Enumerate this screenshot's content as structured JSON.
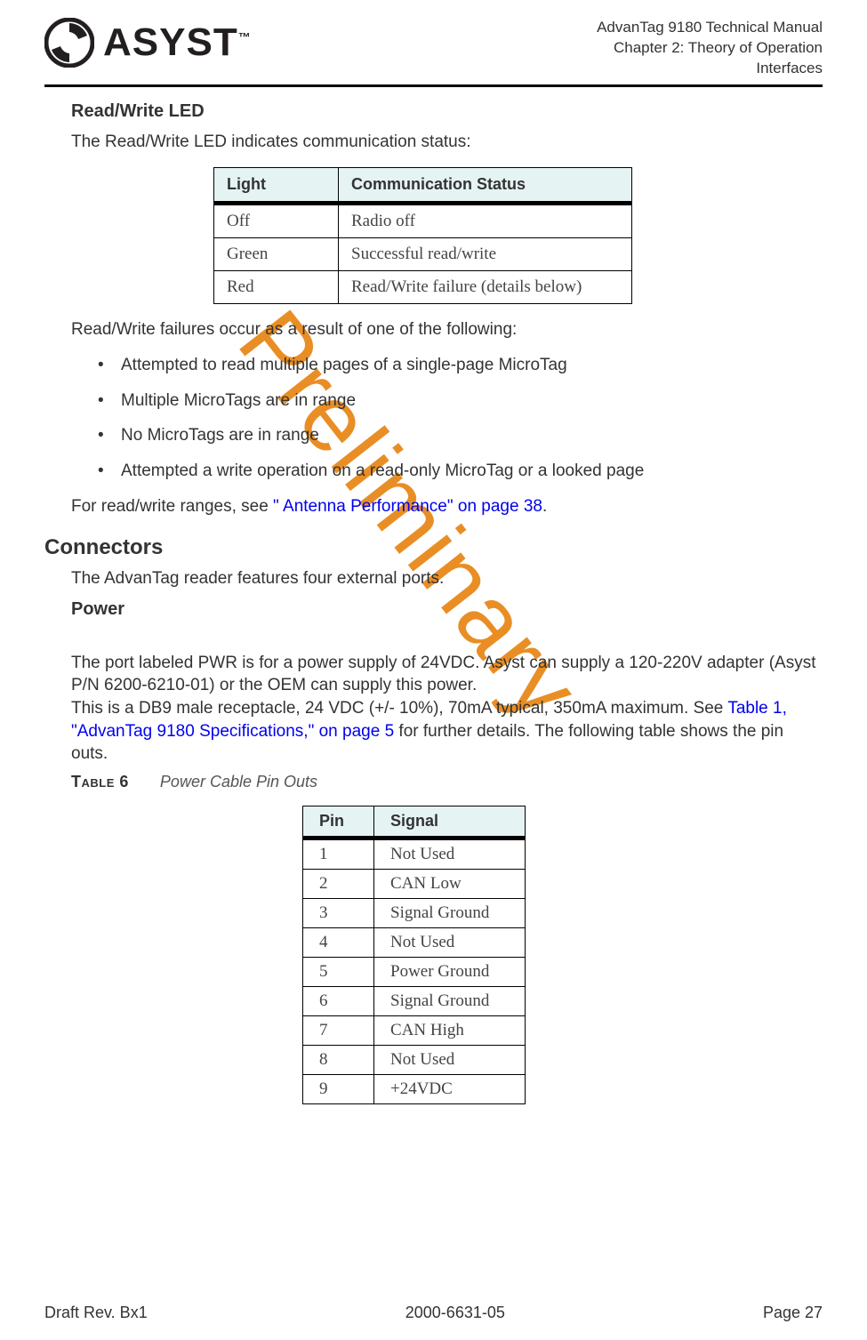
{
  "meta": {
    "manual_line1": "AdvanTag 9180 Technical Manual",
    "manual_line2": "Chapter 2: Theory of Operation",
    "manual_line3": "Interfaces",
    "logo_brand": "ASYST",
    "logo_tm": "™"
  },
  "watermark": {
    "text": "Preliminary",
    "color": "#e67b00"
  },
  "sections": {
    "rw_led": {
      "heading": "Read/Write LED",
      "intro": "The Read/Write LED indicates communication status:",
      "table": {
        "header_bg": "#e5f3f3",
        "columns": [
          "Light",
          "Communication Status"
        ],
        "rows": [
          [
            "Off",
            "Radio off"
          ],
          [
            "Green",
            "Successful read/write"
          ],
          [
            "Red",
            "Read/Write failure (details below)"
          ]
        ]
      },
      "failures_intro": "Read/Write failures occur as a result of one of the following:",
      "failures": [
        "Attempted to read multiple pages of a single-page MicroTag",
        "Multiple MicroTags are in range",
        "No MicroTags are in range",
        "Attempted a write operation on a read-only MicroTag or a looked page"
      ],
      "ranges_prefix": "For read/write ranges, see ",
      "ranges_link": "\" Antenna Performance\" on page 38",
      "ranges_suffix": "."
    },
    "connectors": {
      "heading": "Connectors",
      "intro": "The AdvanTag reader features four external ports."
    },
    "power": {
      "heading": "Power",
      "para_prefix": "The port labeled PWR is for a power supply of 24VDC. Asyst can supply a 120-220V adapter (Asyst P/N 6200-6210-01) or the OEM can supply this power.\nThis is a DB9 male receptacle, 24 VDC (+/- 10%), 70mA typical, 350mA maximum. See ",
      "para_link": "Table 1, \"AdvanTag 9180 Specifications,\" on page 5",
      "para_suffix": " for further details. The following table shows the pin outs.",
      "table_caption_label": "Table 6",
      "table_caption_title": "Power Cable Pin Outs",
      "table": {
        "header_bg": "#e5f3f3",
        "columns": [
          "Pin",
          "Signal"
        ],
        "rows": [
          [
            "1",
            "Not Used"
          ],
          [
            "2",
            "CAN Low"
          ],
          [
            "3",
            "Signal Ground"
          ],
          [
            "4",
            "Not Used"
          ],
          [
            "5",
            "Power Ground"
          ],
          [
            "6",
            "Signal Ground"
          ],
          [
            "7",
            "CAN High"
          ],
          [
            "8",
            "Not Used"
          ],
          [
            "9",
            "+24VDC"
          ]
        ]
      }
    }
  },
  "footer": {
    "left": "Draft Rev. Bx1",
    "center": "2000-6631-05",
    "right": "Page 27"
  },
  "colors": {
    "text": "#333333",
    "link": "#0000ee",
    "table_header_underline": "#000000"
  }
}
